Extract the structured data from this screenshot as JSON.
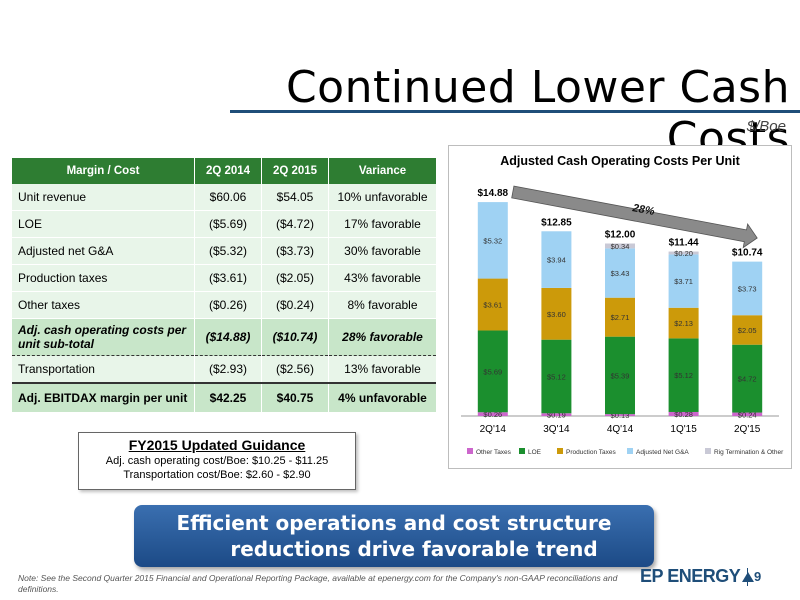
{
  "header": {
    "title": "Continued Lower Cash Costs",
    "subtitle": "$/Boe"
  },
  "table": {
    "columns": [
      "Margin / Cost",
      "2Q 2014",
      "2Q 2015",
      "Variance"
    ],
    "rows": [
      {
        "label": "Unit revenue",
        "q2014": "$60.06",
        "q2015": "$54.05",
        "variance": "10% unfavorable"
      },
      {
        "label": "LOE",
        "q2014": "($5.69)",
        "q2015": "($4.72)",
        "variance": "17% favorable"
      },
      {
        "label": "Adjusted net G&A",
        "q2014": "($5.32)",
        "q2015": "($3.73)",
        "variance": "30% favorable"
      },
      {
        "label": "Production taxes",
        "q2014": "($3.61)",
        "q2015": "($2.05)",
        "variance": "43% favorable"
      },
      {
        "label": "Other taxes",
        "q2014": "($0.26)",
        "q2015": "($0.24)",
        "variance": "8% favorable"
      }
    ],
    "subtotal": {
      "label": "Adj. cash operating costs per unit sub-total",
      "q2014": "($14.88)",
      "q2015": "($10.74)",
      "variance": "28% favorable"
    },
    "transportation": {
      "label": "Transportation",
      "q2014": "($2.93)",
      "q2015": "($2.56)",
      "variance": "13% favorable"
    },
    "total": {
      "label": "Adj. EBITDAX margin per unit",
      "q2014": "$42.25",
      "q2015": "$40.75",
      "variance": "4% unfavorable"
    }
  },
  "guidance": {
    "title": "FY2015 Updated Guidance",
    "line1": "Adj. cash operating cost/Boe: $10.25 - $11.25",
    "line2": "Transportation cost/Boe: $2.60 - $2.90"
  },
  "banner": {
    "line1": "Efficient operations and cost structure",
    "line2": "reductions drive favorable trend"
  },
  "footer": {
    "note": "Note: See the Second Quarter 2015 Financial and Operational Reporting Package, available at epenergy.com for the Company's non-GAAP reconciliations and definitions.",
    "logo": "EP ENERGY",
    "page": "9"
  },
  "chart_data": {
    "type": "bar",
    "stacked": true,
    "title": "Adjusted Cash Operating Costs Per Unit",
    "categories": [
      "2Q'14",
      "3Q'14",
      "4Q'14",
      "1Q'15",
      "2Q'15"
    ],
    "totals": [
      "$14.88",
      "$12.85",
      "$12.00",
      "$11.44",
      "$10.74"
    ],
    "ylim": [
      0,
      16
    ],
    "annotation": "28%",
    "series": [
      {
        "name": "Other Taxes",
        "color": "#cc66cc",
        "values": [
          0.26,
          0.19,
          0.13,
          0.28,
          0.24
        ],
        "labels": [
          "$0.26",
          "$0.19",
          "$0.13",
          "$0.28",
          "$0.24"
        ]
      },
      {
        "name": "LOE",
        "color": "#1b8f2e",
        "values": [
          5.69,
          5.12,
          5.39,
          5.12,
          4.72
        ],
        "labels": [
          "$5.69",
          "$5.12",
          "$5.39",
          "$5.12",
          "$4.72"
        ]
      },
      {
        "name": "Production Taxes",
        "color": "#cc9a0a",
        "values": [
          3.61,
          3.6,
          2.71,
          2.13,
          2.05
        ],
        "labels": [
          "$3.61",
          "$3.60",
          "$2.71",
          "$2.13",
          "$2.05"
        ]
      },
      {
        "name": "Adjusted Net G&A",
        "color": "#9fd2f3",
        "values": [
          5.32,
          3.94,
          3.43,
          3.71,
          3.73
        ],
        "labels": [
          "$5.32",
          "$3.94",
          "$3.43",
          "$3.71",
          "$3.73"
        ]
      },
      {
        "name": "Rig Termination & Other",
        "color": "#c9c9d6",
        "values": [
          0,
          0,
          0.34,
          0.2,
          0
        ],
        "labels": [
          "",
          "",
          "$0.34",
          "$0.20",
          ""
        ]
      }
    ]
  }
}
